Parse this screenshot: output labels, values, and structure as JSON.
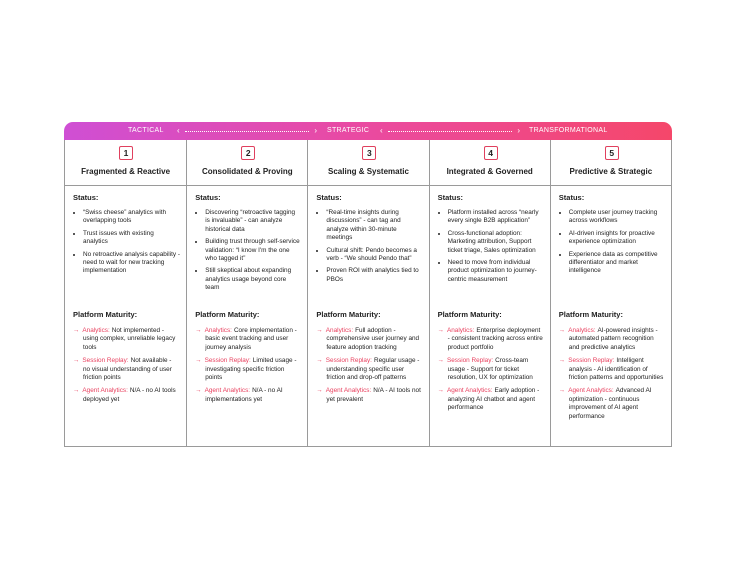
{
  "header": {
    "labels": [
      "TACTICAL",
      "STRATEGIC",
      "TRANSFORMATIONAL"
    ]
  },
  "columns": [
    {
      "number": 1,
      "title": "Fragmented & Reactive",
      "status_label": "Status:",
      "status_items": [
        "“Swiss cheese” analytics with overlapping tools",
        "Trust issues with existing analytics",
        "No retroactive analysis capability - need to wait for new tracking implementation"
      ],
      "maturity_label": "Platform Maturity:",
      "maturity_items": [
        {
          "label": "Analytics:",
          "text": "Not implemented - using complex, unreliable legacy tools"
        },
        {
          "label": "Session Replay:",
          "text": "Not available - no visual understanding of user friction points"
        },
        {
          "label": "Agent Analytics:",
          "text": "N/A - no AI tools deployed yet"
        }
      ]
    },
    {
      "number": 2,
      "title": "Consolidated & Proving",
      "status_label": "Status:",
      "status_items": [
        "Discovering “retroactive tagging is invaluable” - can analyze historical data",
        "Building trust through self-service validation: “I know I'm the one who tagged it”",
        "Still skeptical about expanding analytics usage beyond core team"
      ],
      "maturity_label": "Platform Maturity:",
      "maturity_items": [
        {
          "label": "Analytics:",
          "text": "Core implementation - basic event tracking and user journey analysis"
        },
        {
          "label": "Session Replay:",
          "text": "Limited usage - investigating specific friction points"
        },
        {
          "label": "Agent Analytics:",
          "text": "N/A - no AI implementations yet"
        }
      ]
    },
    {
      "number": 3,
      "title": "Scaling & Systematic",
      "status_label": "Status:",
      "status_items": [
        "“Real-time insights during discussions” - can tag and analyze within 30-minute meetings",
        "Cultural shift: Pendo becomes a verb - “We should Pendo that”",
        "Proven ROI with analytics tied to PBOs"
      ],
      "maturity_label": "Platform Maturity:",
      "maturity_items": [
        {
          "label": "Analytics:",
          "text": "Full adoption - comprehensive user journey and feature adoption tracking"
        },
        {
          "label": "Session Replay:",
          "text": "Regular usage - understanding specific user friction and drop-off patterns"
        },
        {
          "label": "Agent Analytics:",
          "text": "N/A - AI tools not yet prevalent"
        }
      ]
    },
    {
      "number": 4,
      "title": "Integrated & Governed",
      "status_label": "Status:",
      "status_items": [
        "Platform installed across “nearly every single B2B application”",
        "Cross-functional adoption: Marketing attribution, Support ticket triage, Sales optimization",
        "Need to move from individual product optimization to journey-centric measurement"
      ],
      "maturity_label": "Platform Maturity:",
      "maturity_items": [
        {
          "label": "Analytics:",
          "text": "Enterprise deployment - consistent tracking across entire product portfolio"
        },
        {
          "label": "Session Replay:",
          "text": "Cross-team usage - Support for ticket resolution, UX for optimization"
        },
        {
          "label": "Agent Analytics:",
          "text": "Early adoption - analyzing AI chatbot and agent performance"
        }
      ]
    },
    {
      "number": 5,
      "title": "Predictive & Strategic",
      "status_label": "Status:",
      "status_items": [
        "Complete user journey tracking across workflows",
        "AI-driven insights for proactive experience optimization",
        "Experience data as competitive differentiator and market intelligence"
      ],
      "maturity_label": "Platform Maturity:",
      "maturity_items": [
        {
          "label": "Analytics:",
          "text": "AI-powered insights - automated pattern recognition and predictive analytics"
        },
        {
          "label": "Session Replay:",
          "text": "Intelligent analysis - AI identification of friction patterns and opportunities"
        },
        {
          "label": "Agent Analytics:",
          "text": "Advanced AI optimization - continuous improvement of AI agent performance"
        }
      ]
    }
  ]
}
